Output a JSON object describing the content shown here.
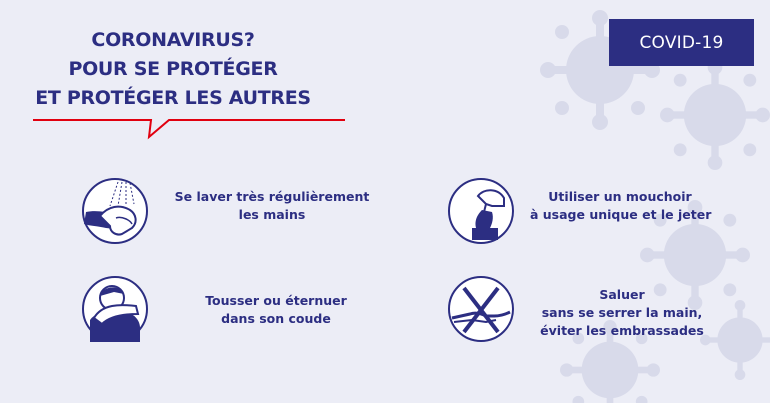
{
  "header": {
    "title_lines": [
      "CORONAVIRUS?",
      "POUR SE PROTÉGER",
      "ET PROTÉGER LES AUTRES"
    ],
    "tag": "COVID-19"
  },
  "actions": [
    {
      "icon": "hand-washing-icon",
      "lines": [
        "Se laver très régulièrement",
        "les mains"
      ]
    },
    {
      "icon": "tissue-icon",
      "lines": [
        "Utiliser un mouchoir",
        "à usage unique et le jeter"
      ]
    },
    {
      "icon": "elbow-cough-icon",
      "lines": [
        "Tousser ou éternuer",
        "dans son coude"
      ]
    },
    {
      "icon": "no-handshake-icon",
      "lines": [
        "Saluer",
        "sans se serrer la main,",
        "éviter les embrassades"
      ]
    }
  ],
  "colors": {
    "primary": "#2c2e82",
    "accent": "#e1000f",
    "background": "#ecedf6",
    "virus": "#d8daea"
  }
}
